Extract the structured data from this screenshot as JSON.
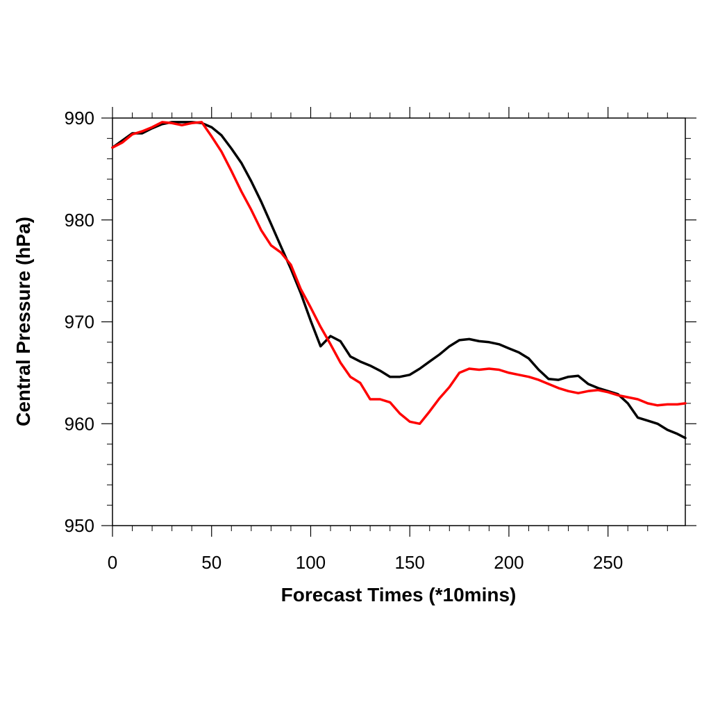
{
  "chart_data": {
    "type": "line",
    "title": "",
    "xlabel": "Forecast Times (*10mins)",
    "ylabel": "Central Pressure (hPa)",
    "xlim": [
      0,
      289
    ],
    "ylim": [
      950,
      990
    ],
    "x_ticks": [
      0,
      50,
      100,
      150,
      200,
      250
    ],
    "x_tick_labels": [
      "0",
      "50",
      "100",
      "150",
      "200",
      "250"
    ],
    "y_ticks": [
      950,
      960,
      970,
      980,
      990
    ],
    "y_tick_labels": [
      "950",
      "960",
      "970",
      "980",
      "990"
    ],
    "x_minor_step": 10,
    "y_minor_step": 2,
    "grid": false,
    "legend": "none",
    "series": [
      {
        "color": "#000000",
        "x": [
          0,
          5,
          10,
          15,
          20,
          25,
          30,
          35,
          40,
          45,
          50,
          55,
          60,
          65,
          70,
          75,
          80,
          85,
          90,
          95,
          100,
          105,
          110,
          115,
          120,
          125,
          130,
          135,
          140,
          145,
          150,
          155,
          160,
          165,
          170,
          175,
          180,
          185,
          190,
          195,
          200,
          205,
          210,
          215,
          220,
          225,
          230,
          235,
          240,
          245,
          250,
          255,
          260,
          265,
          270,
          275,
          280,
          285,
          289
        ],
        "values": [
          987.1,
          987.8,
          988.5,
          988.5,
          989.0,
          989.4,
          989.6,
          989.6,
          989.6,
          989.5,
          989.1,
          988.3,
          987.0,
          985.6,
          983.8,
          981.8,
          979.6,
          977.4,
          975.2,
          972.8,
          970.1,
          967.6,
          968.6,
          968.1,
          966.6,
          966.1,
          965.7,
          965.2,
          964.6,
          964.6,
          964.8,
          965.4,
          966.1,
          966.8,
          967.6,
          968.2,
          968.3,
          968.1,
          968.0,
          967.8,
          967.4,
          967.0,
          966.4,
          965.3,
          964.4,
          964.3,
          964.6,
          964.7,
          963.9,
          963.5,
          963.2,
          962.9,
          962.0,
          960.6,
          960.3,
          960.0,
          959.4,
          959.0,
          958.6
        ]
      },
      {
        "color": "#ff0000",
        "x": [
          0,
          5,
          10,
          15,
          20,
          25,
          30,
          35,
          40,
          45,
          50,
          55,
          60,
          65,
          70,
          75,
          80,
          85,
          90,
          95,
          100,
          105,
          110,
          115,
          120,
          125,
          130,
          135,
          140,
          145,
          150,
          155,
          160,
          165,
          170,
          175,
          180,
          185,
          190,
          195,
          200,
          205,
          210,
          215,
          220,
          225,
          230,
          235,
          240,
          245,
          250,
          255,
          260,
          265,
          270,
          275,
          280,
          285,
          289
        ],
        "values": [
          987.1,
          987.6,
          988.4,
          988.7,
          989.1,
          989.6,
          989.5,
          989.3,
          989.5,
          989.6,
          988.2,
          986.7,
          984.8,
          982.8,
          981.0,
          979.0,
          977.5,
          976.8,
          975.6,
          973.2,
          971.4,
          969.5,
          967.8,
          966.0,
          964.6,
          964.0,
          962.4,
          962.4,
          962.1,
          961.0,
          960.2,
          960.0,
          961.2,
          962.5,
          963.6,
          965.0,
          965.4,
          965.3,
          965.4,
          965.3,
          965.0,
          964.8,
          964.6,
          964.3,
          963.9,
          963.5,
          963.2,
          963.0,
          963.2,
          963.3,
          963.1,
          962.8,
          962.6,
          962.4,
          962.0,
          961.8,
          961.9,
          961.9,
          962.0
        ]
      }
    ]
  }
}
